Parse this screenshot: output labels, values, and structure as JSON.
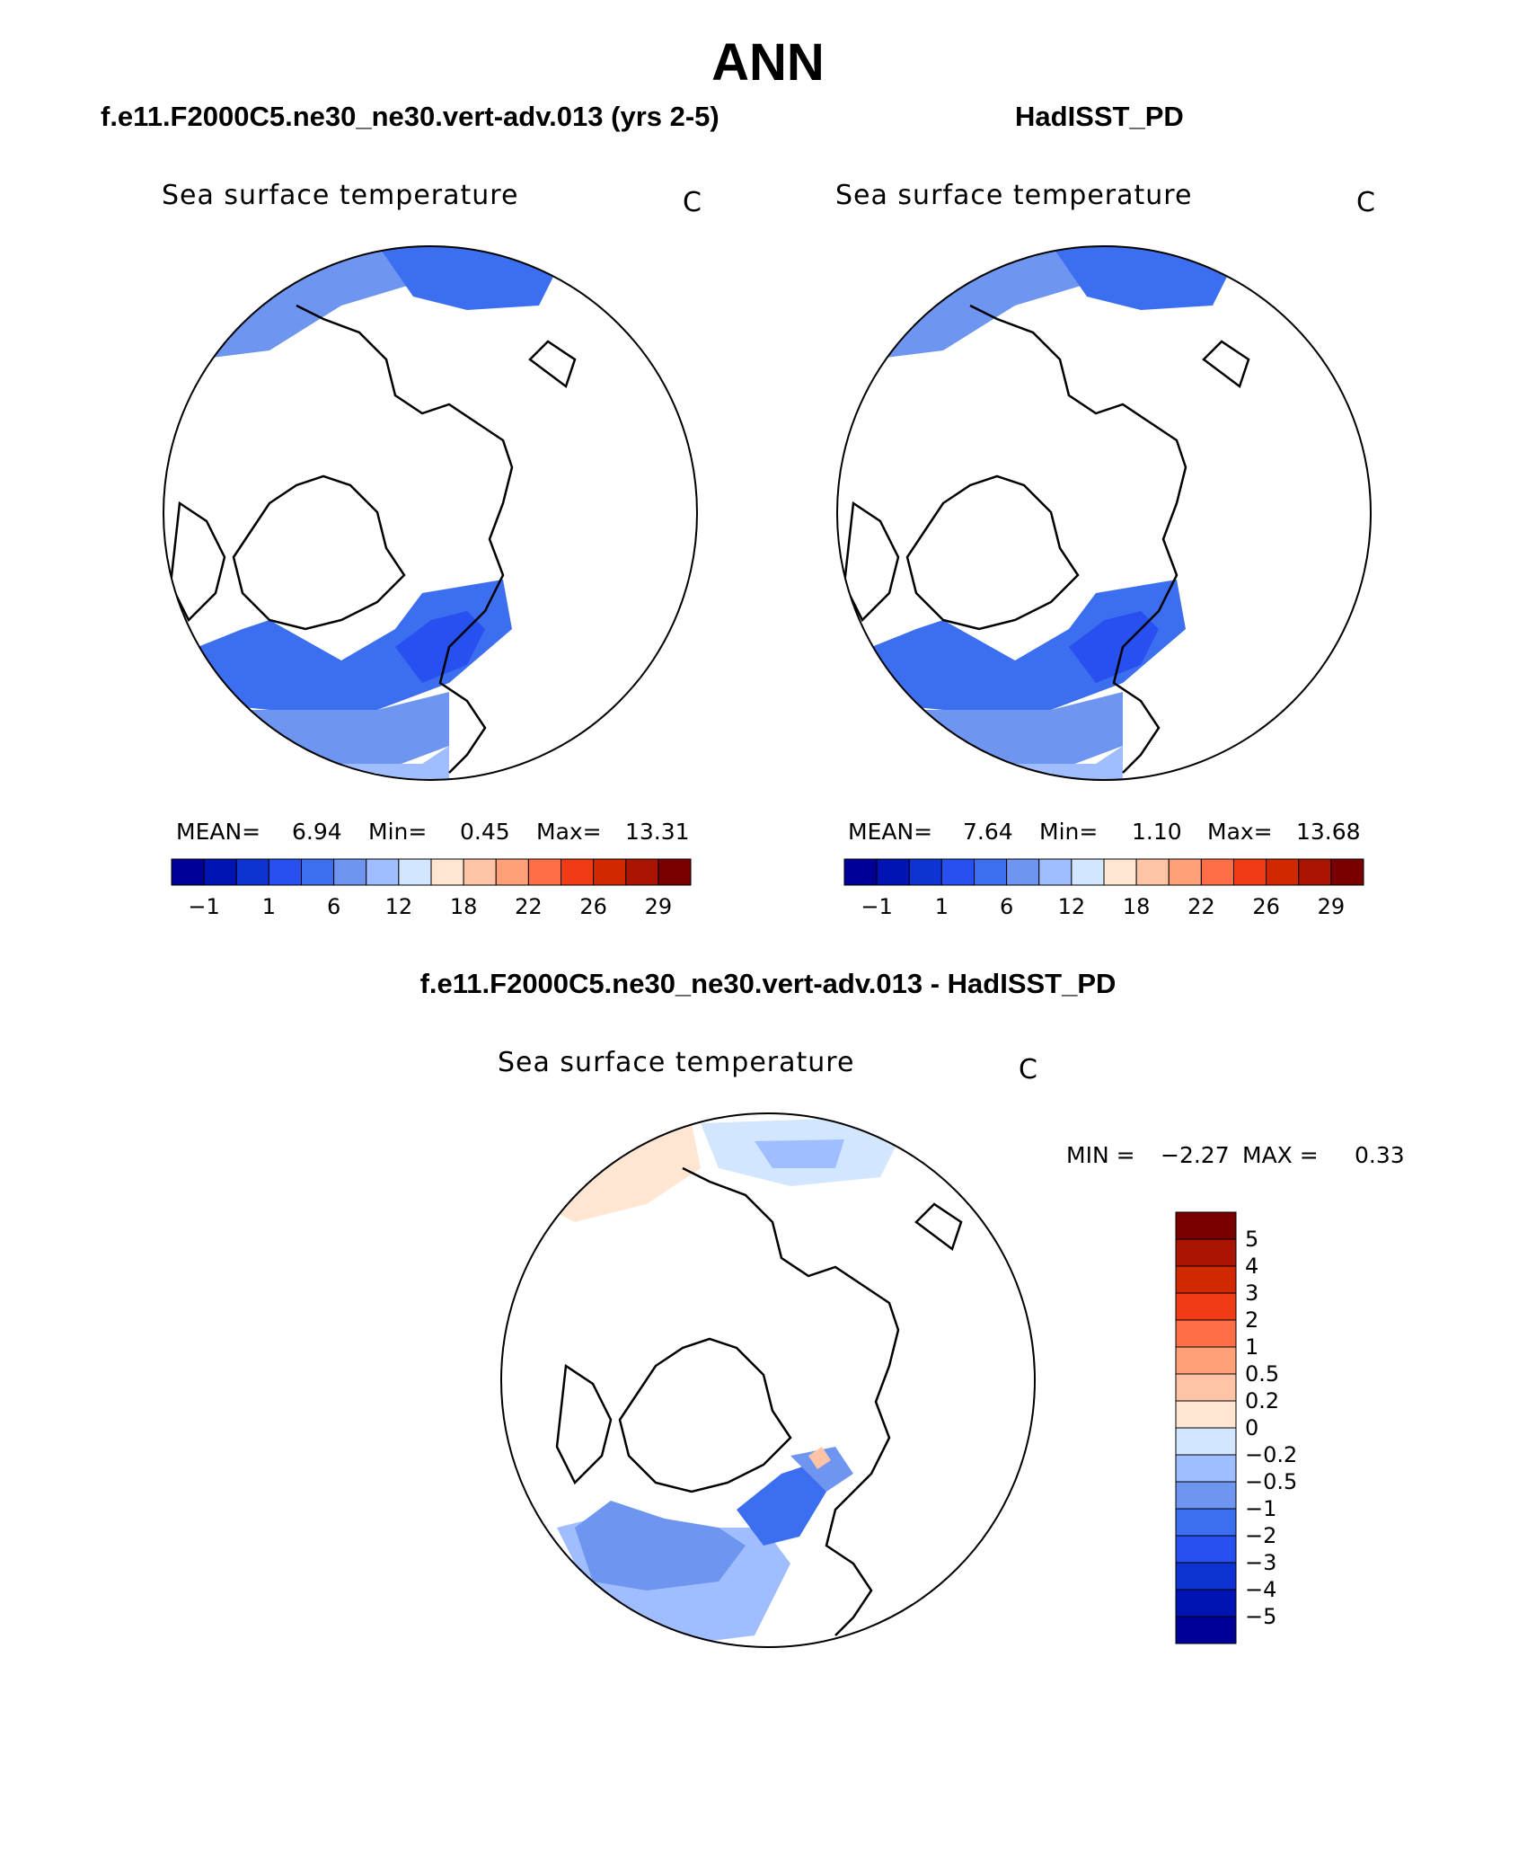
{
  "figure": {
    "title": "ANN",
    "diff_title": "f.e11.F2000C5.ne30_ne30.vert-adv.013 - HadISST_PD"
  },
  "panels": [
    {
      "case_title": "f.e11.F2000C5.ne30_ne30.vert-adv.013 (yrs 2-5)",
      "field": "Sea surface temperature",
      "units": "C",
      "stats": {
        "mean_label": "MEAN=",
        "mean": "6.94",
        "min_label": "Min=",
        "min": "0.45",
        "max_label": "Max=",
        "max": "13.31"
      }
    },
    {
      "case_title": "HadISST_PD",
      "field": "Sea surface temperature",
      "units": "C",
      "stats": {
        "mean_label": "MEAN=",
        "mean": "7.64",
        "min_label": "Min=",
        "min": "1.10",
        "max_label": "Max=",
        "max": "13.68"
      }
    },
    {
      "field": "Sea surface temperature",
      "units": "C",
      "stats": {
        "min_label": "MIN =",
        "min": "−2.27",
        "max_label": "MAX =",
        "max": "0.33"
      }
    }
  ],
  "abs_colorbar": {
    "colors": [
      "#000096",
      "#0014b4",
      "#0f32d2",
      "#2850f0",
      "#3c6ef0",
      "#6e96f0",
      "#a0beff",
      "#d2e6ff",
      "#ffe6d2",
      "#ffc3a5",
      "#ffa078",
      "#ff6e46",
      "#f03c14",
      "#d22800",
      "#aa1400",
      "#780000"
    ],
    "tick_labels": [
      "−1",
      "1",
      "6",
      "12",
      "18",
      "22",
      "26",
      "29"
    ]
  },
  "diff_colorbar": {
    "colors": [
      "#780000",
      "#aa1400",
      "#d22800",
      "#f03c14",
      "#ff6e46",
      "#ffa078",
      "#ffc3a5",
      "#ffe6d2",
      "#d2e6ff",
      "#a0beff",
      "#6e96f0",
      "#3c6ef0",
      "#2850f0",
      "#0f32d2",
      "#0014b4",
      "#000096"
    ],
    "tick_labels": [
      "5",
      "4",
      "3",
      "2",
      "1",
      "0.5",
      "0.2",
      "0",
      "−0.2",
      "−0.5",
      "−1",
      "−2",
      "−3",
      "−4",
      "−5"
    ]
  },
  "colors": {
    "ocean_shades": [
      "#2850f0",
      "#3c6ef0",
      "#6e96f0",
      "#a0beff",
      "#d2e6ff",
      "#ffe6d2"
    ],
    "coast": "#000000"
  }
}
